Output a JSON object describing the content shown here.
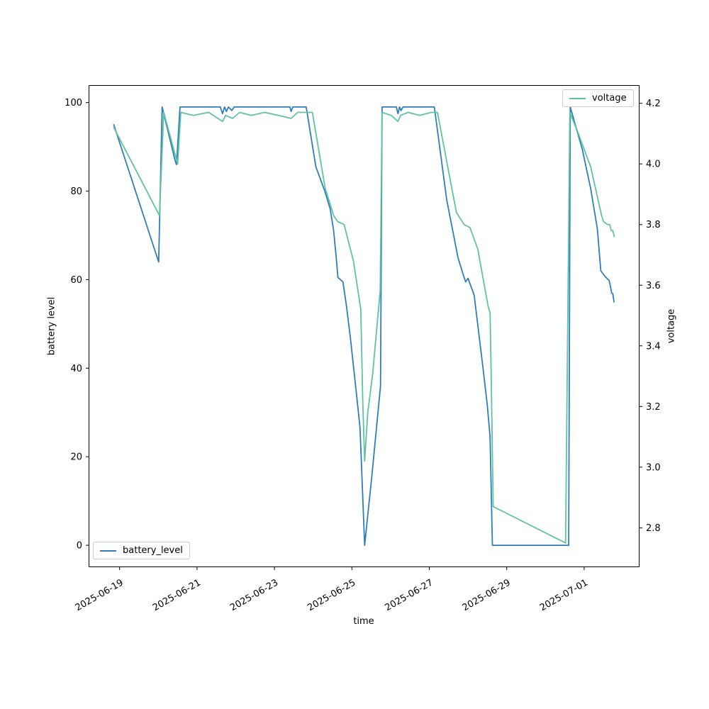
{
  "chart_data": {
    "type": "line",
    "title": "",
    "xlabel": "time",
    "ylabel_left": "battery level",
    "ylabel_right": "voltage",
    "grid": false,
    "x_axis": {
      "unit": "days since 2025-06-19 00:00",
      "xlim": [
        -0.8,
        13.43
      ],
      "tick_positions": [
        0,
        2,
        4,
        6,
        8,
        10,
        12
      ],
      "tick_labels": [
        "2025-06-19",
        "2025-06-21",
        "2025-06-23",
        "2025-06-25",
        "2025-06-27",
        "2025-06-29",
        "2025-07-01"
      ],
      "tick_label_rotation_deg": 30
    },
    "y_axis_left": {
      "ylim": [
        -4.95,
        103.95
      ],
      "tick_values": [
        0,
        20,
        40,
        60,
        80,
        100
      ],
      "tick_labels": [
        "0",
        "20",
        "40",
        "60",
        "80",
        "100"
      ]
    },
    "y_axis_right": {
      "ylim": [
        2.67,
        4.26
      ],
      "tick_values": [
        2.8,
        3.0,
        3.2,
        3.4,
        3.6,
        3.8,
        4.0,
        4.2
      ],
      "tick_labels": [
        "2.8",
        "3.0",
        "3.2",
        "3.4",
        "3.6",
        "3.8",
        "4.0",
        "4.2"
      ]
    },
    "legend": [
      {
        "label": "battery_level",
        "location": "lower left",
        "series": "battery_level"
      },
      {
        "label": "voltage",
        "location": "upper right",
        "series": "voltage"
      }
    ],
    "series": [
      {
        "name": "battery_level",
        "axis": "left",
        "color": "#2e7ebc",
        "points": [
          [
            -0.15,
            95
          ],
          [
            1.01,
            64
          ],
          [
            1.1,
            99
          ],
          [
            1.43,
            87
          ],
          [
            1.47,
            86
          ],
          [
            1.56,
            99
          ],
          [
            2.6,
            99
          ],
          [
            2.66,
            97.5
          ],
          [
            2.71,
            99
          ],
          [
            2.76,
            98
          ],
          [
            2.81,
            99
          ],
          [
            2.9,
            98.2
          ],
          [
            2.96,
            99
          ],
          [
            4.4,
            99
          ],
          [
            4.43,
            98
          ],
          [
            4.47,
            99
          ],
          [
            4.82,
            99
          ],
          [
            5.07,
            85.5
          ],
          [
            5.3,
            80
          ],
          [
            5.44,
            76
          ],
          [
            5.53,
            71
          ],
          [
            5.6,
            64.5
          ],
          [
            5.64,
            60.5
          ],
          [
            5.77,
            59.5
          ],
          [
            5.86,
            54
          ],
          [
            5.96,
            47
          ],
          [
            6.12,
            34
          ],
          [
            6.21,
            26.5
          ],
          [
            6.33,
            0
          ],
          [
            6.52,
            16
          ],
          [
            6.74,
            36
          ],
          [
            6.78,
            99
          ],
          [
            7.15,
            99
          ],
          [
            7.19,
            97.5
          ],
          [
            7.23,
            99
          ],
          [
            7.27,
            98.2
          ],
          [
            7.32,
            99
          ],
          [
            8.13,
            99
          ],
          [
            8.45,
            78
          ],
          [
            8.74,
            65
          ],
          [
            8.88,
            61
          ],
          [
            8.94,
            59.5
          ],
          [
            9.0,
            60.3
          ],
          [
            9.16,
            56.5
          ],
          [
            9.38,
            40.5
          ],
          [
            9.5,
            31.5
          ],
          [
            9.57,
            24.5
          ],
          [
            9.63,
            0
          ],
          [
            11.52,
            0
          ],
          [
            11.6,
            0
          ],
          [
            11.64,
            99
          ],
          [
            11.95,
            89.5
          ],
          [
            12.17,
            80.5
          ],
          [
            12.34,
            71.5
          ],
          [
            12.43,
            62
          ],
          [
            12.53,
            60.8
          ],
          [
            12.62,
            60
          ],
          [
            12.64,
            59.9
          ],
          [
            12.68,
            58.5
          ],
          [
            12.71,
            57
          ],
          [
            12.74,
            56.8
          ],
          [
            12.77,
            55
          ]
        ]
      },
      {
        "name": "voltage",
        "axis": "right",
        "color": "#5fc2a1",
        "points": [
          [
            -0.15,
            4.12
          ],
          [
            1.03,
            3.83
          ],
          [
            1.14,
            4.17
          ],
          [
            1.5,
            4.0
          ],
          [
            1.58,
            4.17
          ],
          [
            1.9,
            4.16
          ],
          [
            2.3,
            4.17
          ],
          [
            2.66,
            4.14
          ],
          [
            2.74,
            4.16
          ],
          [
            2.92,
            4.15
          ],
          [
            3.1,
            4.17
          ],
          [
            3.4,
            4.16
          ],
          [
            3.75,
            4.17
          ],
          [
            4.1,
            4.16
          ],
          [
            4.43,
            4.15
          ],
          [
            4.6,
            4.17
          ],
          [
            4.98,
            4.17
          ],
          [
            5.31,
            3.92
          ],
          [
            5.53,
            3.83
          ],
          [
            5.63,
            3.81
          ],
          [
            5.8,
            3.8
          ],
          [
            5.88,
            3.76
          ],
          [
            6.04,
            3.68
          ],
          [
            6.23,
            3.52
          ],
          [
            6.28,
            3.22
          ],
          [
            6.33,
            3.02
          ],
          [
            6.41,
            3.18
          ],
          [
            6.54,
            3.31
          ],
          [
            6.63,
            3.44
          ],
          [
            6.73,
            3.58
          ],
          [
            6.78,
            4.17
          ],
          [
            7.02,
            4.16
          ],
          [
            7.19,
            4.14
          ],
          [
            7.26,
            4.16
          ],
          [
            7.45,
            4.17
          ],
          [
            7.75,
            4.16
          ],
          [
            8.05,
            4.17
          ],
          [
            8.21,
            4.17
          ],
          [
            8.7,
            3.84
          ],
          [
            8.9,
            3.8
          ],
          [
            9.05,
            3.79
          ],
          [
            9.25,
            3.72
          ],
          [
            9.52,
            3.53
          ],
          [
            9.57,
            3.51
          ],
          [
            9.6,
            3.29
          ],
          [
            9.65,
            2.87
          ],
          [
            11.52,
            2.75
          ],
          [
            11.63,
            4.17
          ],
          [
            11.82,
            4.11
          ],
          [
            12.17,
            3.99
          ],
          [
            12.45,
            3.83
          ],
          [
            12.5,
            3.81
          ],
          [
            12.6,
            3.8
          ],
          [
            12.66,
            3.8
          ],
          [
            12.7,
            3.78
          ],
          [
            12.74,
            3.78
          ],
          [
            12.78,
            3.76
          ]
        ]
      }
    ]
  }
}
